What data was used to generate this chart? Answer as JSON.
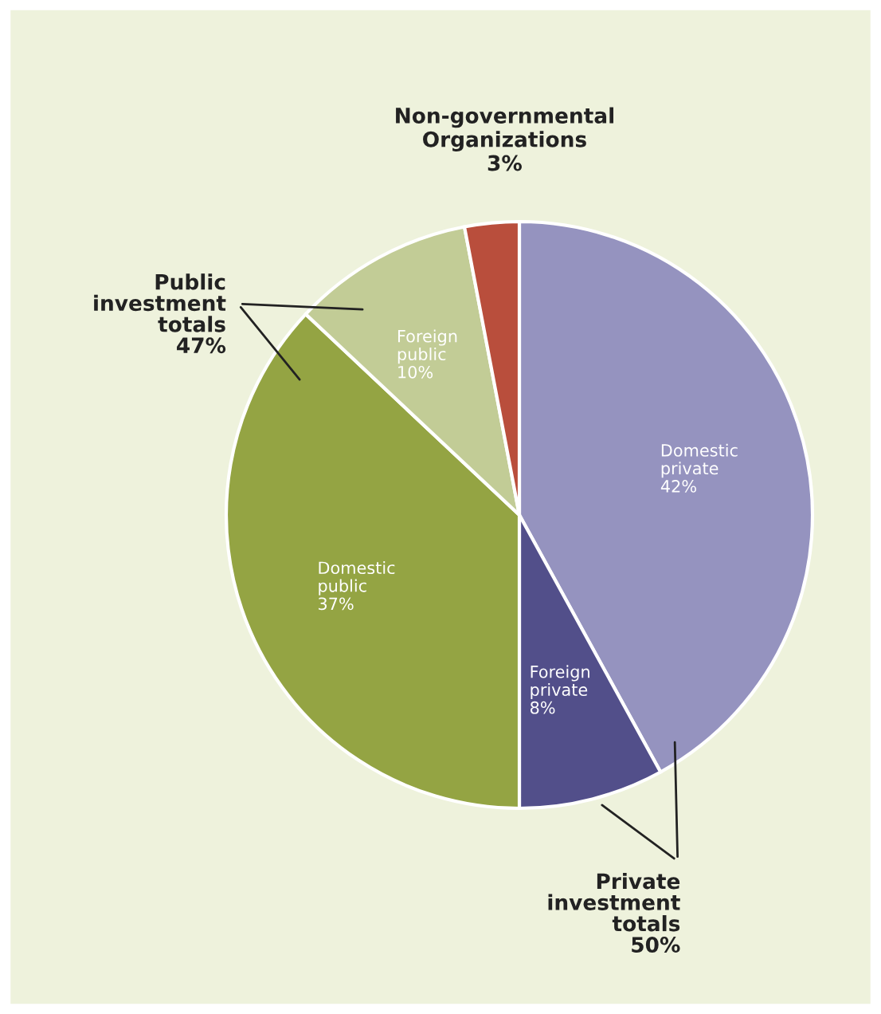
{
  "chart_data": {
    "type": "pie",
    "categories": [
      "Domestic private",
      "Foreign private",
      "Domestic public",
      "Foreign public",
      "Non-governmental Organizations"
    ],
    "values": [
      42,
      8,
      37,
      10,
      3
    ],
    "value_labels": [
      "42%",
      "8%",
      "37%",
      "10%",
      "3%"
    ],
    "colors": [
      "#9593bf",
      "#524f8a",
      "#94a443",
      "#c2cc96",
      "#b94e3c"
    ],
    "annotations": [
      "Public investment totals 47%",
      "Private investment totals 50%"
    ]
  }
}
